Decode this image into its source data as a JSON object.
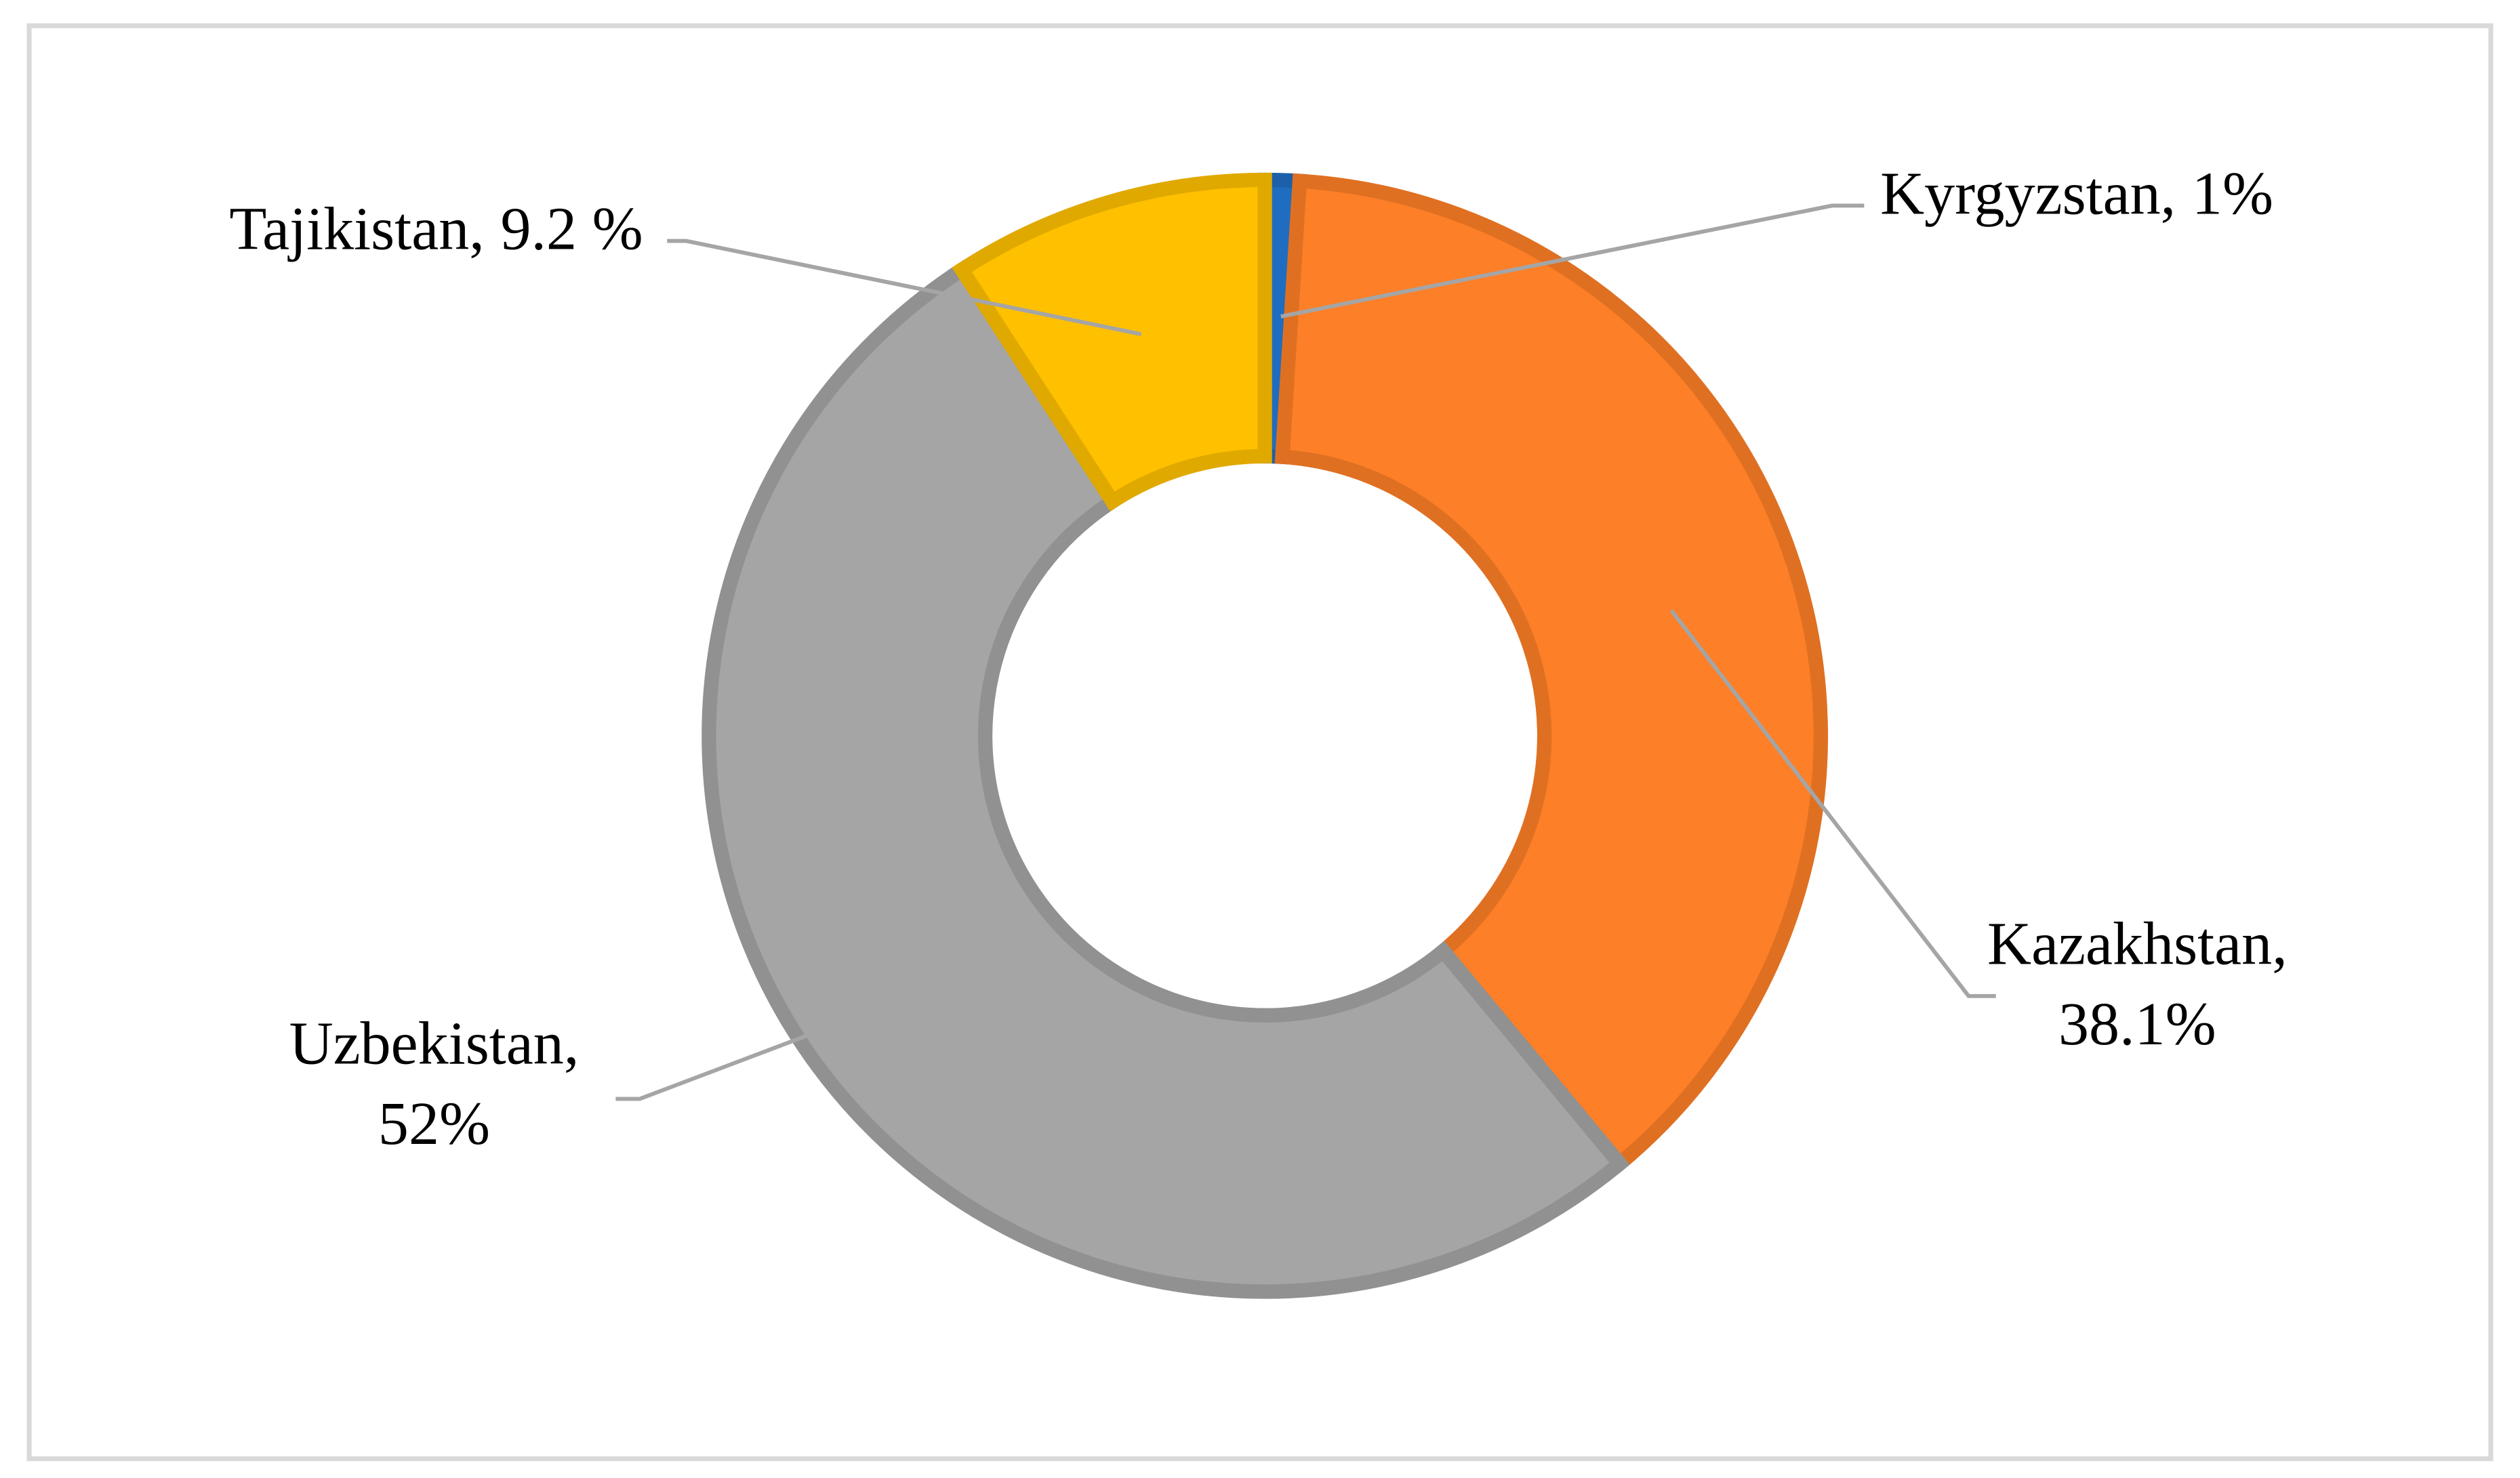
{
  "chart_data": {
    "type": "donut",
    "categories": [
      "Kyrgyzstan,",
      "Kazakhstan,",
      "Uzbekistan,",
      "Tajikistan,"
    ],
    "values": [
      1,
      38.1,
      52,
      9.2
    ],
    "value_labels": [
      "1%",
      "38.1%",
      "52%",
      "9.2 %"
    ],
    "colors": [
      "#1f6dc0",
      "#fd7f27",
      "#a5a5a5",
      "#ffc000"
    ]
  }
}
